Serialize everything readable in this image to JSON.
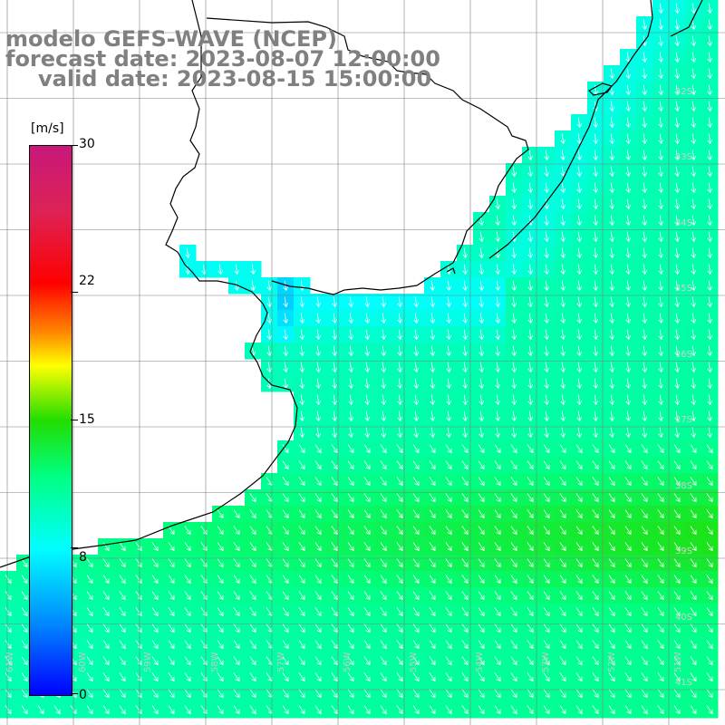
{
  "title": {
    "model": "modelo GEFS-WAVE (NCEP)",
    "forecast": "forecast date: 2023-08-07 12:00:00",
    "valid": "valid date: 2023-08-15 15:00:00"
  },
  "colorbar": {
    "unit": "[m/s]",
    "ticks": [
      "30",
      "22",
      "15",
      "8",
      "0"
    ],
    "tick_values": [
      30,
      22,
      15,
      8,
      0
    ],
    "range": [
      0,
      30
    ],
    "colors": [
      "#0000ff",
      "#00ffff",
      "#22dd00",
      "#ffff00",
      "#ff0000",
      "#c8187a"
    ]
  },
  "latitude_labels": [
    "32S",
    "33S",
    "34S",
    "35S",
    "36S",
    "37S",
    "38S",
    "39S",
    "40S",
    "41S"
  ],
  "longitude_labels": [
    "61W",
    "60W",
    "59W",
    "58W",
    "57W",
    "56W",
    "55W",
    "54W",
    "53W",
    "52W",
    "51W"
  ],
  "colors": {
    "land": "#ffffff",
    "coast": "#000000",
    "grid": "#7f7f7f",
    "arrow": "#ffffff",
    "title": "#808080"
  }
}
